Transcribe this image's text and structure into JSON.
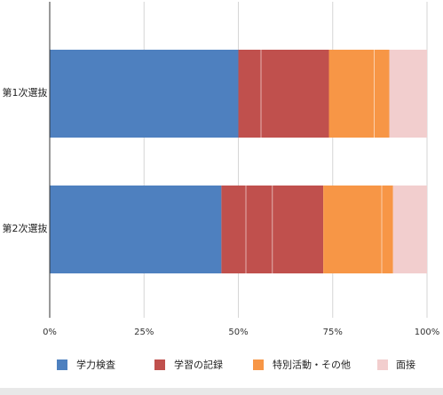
{
  "chart_data": {
    "type": "bar",
    "orientation": "horizontal",
    "stacked": true,
    "normalized_percent": true,
    "categories": [
      "第1次選抜",
      "第2次選抜"
    ],
    "series": [
      {
        "name": "学力検査",
        "color": "#4e80bf",
        "values": [
          50,
          45.5
        ]
      },
      {
        "name": "学習の記録",
        "color": "#c0504d",
        "values": [
          24,
          27
        ]
      },
      {
        "name": "特別活動・その他",
        "color": "#f79646",
        "values": [
          16,
          18.5
        ]
      },
      {
        "name": "面接",
        "color": "#f2cece",
        "values": [
          10,
          9
        ]
      }
    ],
    "segment_dividers": [
      [
        56,
        86
      ],
      [
        52,
        59,
        88
      ]
    ],
    "xlim": [
      0,
      100
    ],
    "xticks": [
      {
        "value": 0,
        "label": "0%"
      },
      {
        "value": 25,
        "label": "25%"
      },
      {
        "value": 50,
        "label": "50%"
      },
      {
        "value": 75,
        "label": "75%"
      },
      {
        "value": 100,
        "label": "100%"
      }
    ],
    "grid": true,
    "legend_position": "bottom",
    "title": "",
    "xlabel": "",
    "ylabel": ""
  }
}
